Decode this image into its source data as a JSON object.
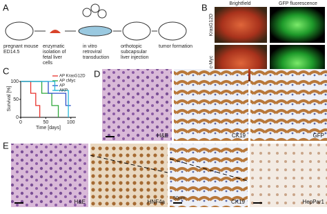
{
  "panels": {
    "A": "A",
    "B": "B",
    "C": "C",
    "D": "D",
    "E": "E"
  },
  "workflow": [
    {
      "lines": [
        "pregnant mouse",
        "ED14.5"
      ]
    },
    {
      "lines": [
        "enzymatic",
        "isolation of",
        "fetal liver",
        "cells"
      ]
    },
    {
      "lines": [
        "in vitro",
        "retroviral",
        "transduction"
      ]
    },
    {
      "lines": [
        "orthotopic",
        "subcapsular",
        "liver injection"
      ]
    },
    {
      "lines": [
        "tumor formation"
      ]
    }
  ],
  "imaging": {
    "columns": [
      "Brightfield",
      "GFP fluorescence"
    ],
    "rows": [
      "KrasG12D",
      "c-Myc"
    ]
  },
  "histology_d": [
    "H&E",
    "CK19",
    "GFP"
  ],
  "histology_e": [
    "H&E",
    "HNF4a",
    "CK19",
    "HepPar1"
  ],
  "scale_label": "50µm",
  "chart_data": {
    "type": "line",
    "xlabel": "Time [days]",
    "ylabel": "Survival [%]",
    "xlim": [
      0,
      110
    ],
    "ylim": [
      0,
      100
    ],
    "xticks": [
      0,
      50,
      100
    ],
    "yticks": [
      0,
      50,
      100
    ],
    "series": [
      {
        "name": "AP KrasG12D",
        "color": "#e8302a",
        "x": [
          0,
          20,
          20,
          30,
          30,
          38,
          38
        ],
        "values": [
          100,
          100,
          67,
          67,
          33,
          33,
          0
        ]
      },
      {
        "name": "AP cMyc",
        "color": "#2ea83a",
        "x": [
          0,
          42,
          42,
          62,
          62,
          75,
          75
        ],
        "values": [
          100,
          100,
          67,
          67,
          33,
          33,
          0
        ]
      },
      {
        "name": "AP",
        "color": "#2b4fc9",
        "x": [
          0,
          55,
          55,
          90,
          90,
          100
        ],
        "values": [
          100,
          100,
          67,
          67,
          33,
          33
        ]
      },
      {
        "name": "AKP",
        "color": "#27b8d8",
        "x": [
          0,
          68,
          68,
          95,
          95
        ],
        "values": [
          100,
          100,
          75,
          75,
          0
        ]
      }
    ]
  }
}
